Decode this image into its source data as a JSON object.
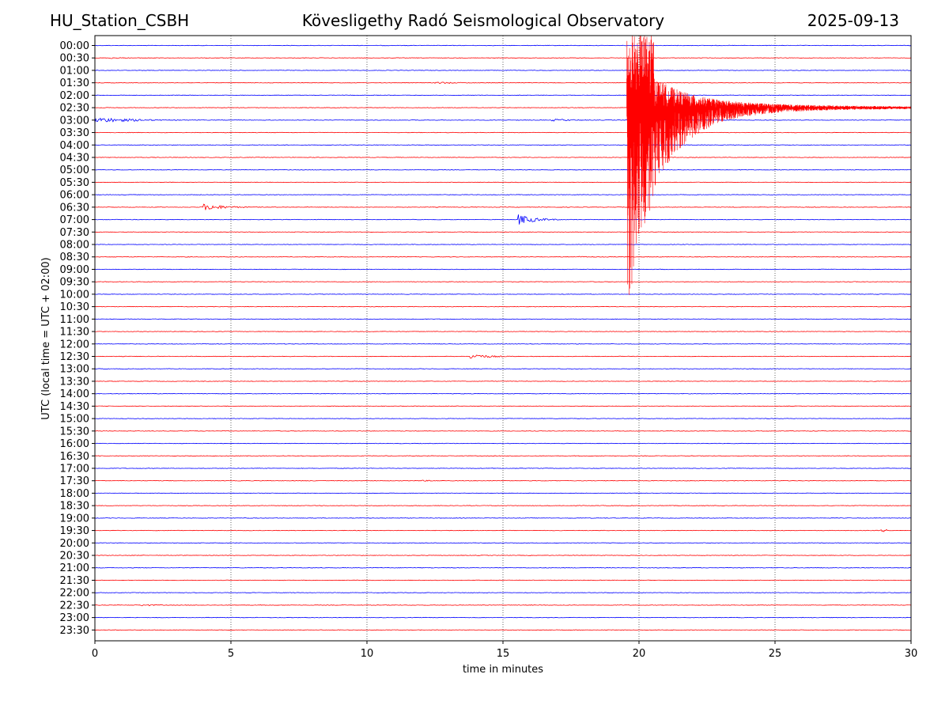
{
  "header": {
    "station": "HU_Station_CSBH",
    "title": "Kövesligethy Radó Seismological Observatory",
    "date": "2025-09-13"
  },
  "chart_data": {
    "type": "line",
    "xlabel": "time in minutes",
    "ylabel": "UTC (local time = UTC + 02:00)",
    "xlim": [
      0,
      30
    ],
    "xticks": [
      "0",
      "5",
      "10",
      "15",
      "20",
      "25",
      "30"
    ],
    "xgrid": "dotted vertical lines at 5, 10, 15, 20, 25",
    "row_labels": [
      "00:00",
      "00:30",
      "01:00",
      "01:30",
      "02:00",
      "02:30",
      "03:00",
      "03:30",
      "04:00",
      "04:30",
      "05:00",
      "05:30",
      "06:00",
      "06:30",
      "07:00",
      "07:30",
      "08:00",
      "08:30",
      "09:00",
      "09:30",
      "10:00",
      "10:30",
      "11:00",
      "11:30",
      "12:00",
      "12:30",
      "13:00",
      "13:30",
      "14:00",
      "14:30",
      "15:00",
      "15:30",
      "16:00",
      "16:30",
      "17:00",
      "17:30",
      "18:00",
      "18:30",
      "19:00",
      "19:30",
      "20:00",
      "20:30",
      "21:00",
      "21:30",
      "22:00",
      "22:30",
      "23:00",
      "23:30"
    ],
    "colors": {
      "even_rows": "#0000ff",
      "odd_rows": "#ff0000"
    },
    "events": [
      {
        "row": "00:30",
        "start_min": 0.5,
        "end_min": 1.5,
        "amp": 0.12,
        "decay": 1.0
      },
      {
        "row": "01:30",
        "start_min": 12.5,
        "end_min": 14.0,
        "amp": 0.18,
        "decay": 1.0
      },
      {
        "row": "03:00",
        "start_min": 0.0,
        "end_min": 7.0,
        "amp": 0.45,
        "decay": 1.5
      },
      {
        "row": "03:00",
        "start_min": 16.8,
        "end_min": 18.5,
        "amp": 0.2,
        "decay": 1.0
      },
      {
        "row": "06:30",
        "start_min": 4.0,
        "end_min": 7.5,
        "amp": 0.55,
        "decay": 0.8
      },
      {
        "row": "07:00",
        "start_min": 15.55,
        "end_min": 18.5,
        "amp": 0.9,
        "decay": 0.6
      },
      {
        "row": "08:30",
        "start_min": 17.8,
        "end_min": 19.0,
        "amp": 0.1,
        "decay": 1.0
      },
      {
        "row": "12:30",
        "start_min": 13.8,
        "end_min": 17.5,
        "amp": 0.45,
        "decay": 0.7
      },
      {
        "row": "17:30",
        "start_min": 12.0,
        "end_min": 13.5,
        "amp": 0.1,
        "decay": 1.0
      },
      {
        "row": "19:30",
        "start_min": 28.9,
        "end_min": 29.1,
        "amp": 0.2,
        "decay": 1.0
      },
      {
        "row": "22:30",
        "start_min": 1.7,
        "end_min": 2.5,
        "amp": 0.15,
        "decay": 1.0
      }
    ],
    "earthquake": {
      "row": "02:30",
      "start_min": 19.55,
      "peak_up_rows": 6,
      "peak_down_rows": 16.5,
      "coda_amp_rows": 0.5,
      "coda_end_min": 30
    }
  }
}
